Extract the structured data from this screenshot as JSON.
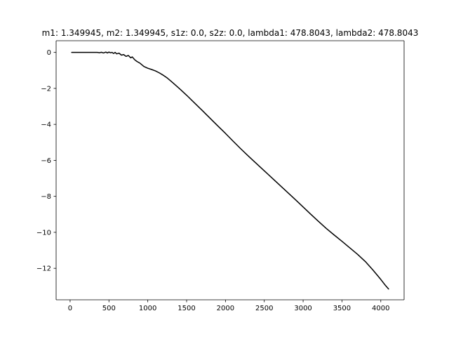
{
  "chart_data": {
    "type": "line",
    "title": "m1: 1.349945, m2: 1.349945, s1z: 0.0, s2z: 0.0, lambda1: 478.8043, lambda2: 478.8043",
    "xlabel": "",
    "ylabel": "",
    "xlim": [
      -180,
      4300
    ],
    "ylim": [
      -13.75,
      0.65
    ],
    "xticks": [
      0,
      500,
      1000,
      1500,
      2000,
      2500,
      3000,
      3500,
      4000
    ],
    "yticks": [
      0,
      -2,
      -4,
      -6,
      -8,
      -10,
      -12
    ],
    "grid": false,
    "legend": "none",
    "line_color": "#000000",
    "series": [
      {
        "x": [
          20,
          100,
          200,
          300,
          350,
          380,
          400,
          430,
          460,
          480,
          500,
          520,
          540,
          560,
          580,
          600,
          630,
          660,
          690,
          720,
          750,
          780,
          800,
          830,
          860,
          900,
          950,
          1000,
          1050,
          1100,
          1150,
          1200,
          1250,
          1300,
          1400,
          1500,
          1600,
          1700,
          1800,
          1900,
          2000,
          2100,
          2200,
          2300,
          2400,
          2500,
          2600,
          2700,
          2800,
          2900,
          3000,
          3100,
          3200,
          3300,
          3400,
          3500,
          3600,
          3700,
          3800,
          3900,
          4000,
          4050,
          4100
        ],
        "y": [
          0.0,
          0.0,
          0.0,
          0.0,
          0.0,
          -0.02,
          0.01,
          -0.03,
          0.02,
          -0.03,
          0.02,
          -0.02,
          0.0,
          -0.06,
          0.0,
          -0.08,
          -0.04,
          -0.15,
          -0.12,
          -0.22,
          -0.17,
          -0.3,
          -0.25,
          -0.4,
          -0.5,
          -0.6,
          -0.78,
          -0.88,
          -0.95,
          -1.03,
          -1.14,
          -1.27,
          -1.42,
          -1.6,
          -1.98,
          -2.38,
          -2.8,
          -3.22,
          -3.65,
          -4.08,
          -4.5,
          -4.94,
          -5.37,
          -5.78,
          -6.18,
          -6.58,
          -6.98,
          -7.38,
          -7.78,
          -8.18,
          -8.59,
          -9.0,
          -9.4,
          -9.79,
          -10.15,
          -10.5,
          -10.86,
          -11.22,
          -11.62,
          -12.1,
          -12.62,
          -12.9,
          -13.15
        ]
      }
    ]
  }
}
